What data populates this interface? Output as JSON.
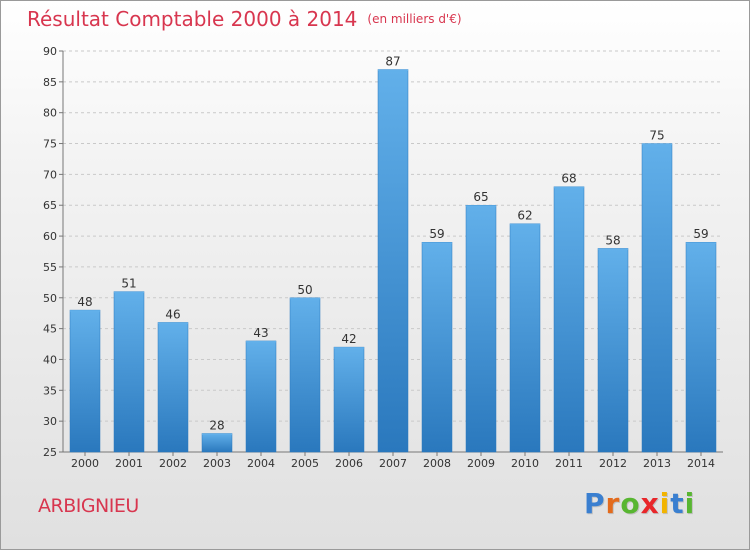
{
  "chart_data": {
    "type": "bar",
    "title": "Résultat Comptable 2000 à 2014",
    "subtitle": "(en milliers d'€)",
    "categories": [
      "2000",
      "2001",
      "2002",
      "2003",
      "2004",
      "2005",
      "2006",
      "2007",
      "2008",
      "2009",
      "2010",
      "2011",
      "2012",
      "2013",
      "2014"
    ],
    "values": [
      48,
      51,
      46,
      28,
      43,
      50,
      42,
      87,
      59,
      65,
      62,
      68,
      58,
      75,
      59
    ],
    "ylim": [
      25,
      90
    ],
    "yticks": [
      25,
      30,
      35,
      40,
      45,
      50,
      55,
      60,
      65,
      70,
      75,
      80,
      85,
      90
    ],
    "xlabel": "",
    "ylabel": "",
    "grid": true,
    "bar_color": "#3d8fd4",
    "bar_color_light": "#62b0ea",
    "bar_color_dark": "#2a78bd"
  },
  "footer": {
    "location": "ARBIGNIEU",
    "brand_letters": [
      "P",
      "r",
      "o",
      "x",
      "i",
      "t",
      "i"
    ],
    "brand_colors": [
      "#3a7fd0",
      "#e36b1d",
      "#58b631",
      "#e8262a",
      "#f2b400",
      "#3a7fd0",
      "#58b631"
    ]
  }
}
